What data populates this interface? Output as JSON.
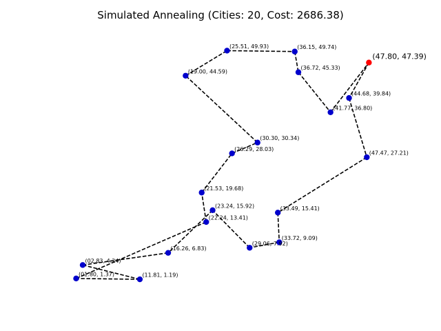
{
  "chart_data": {
    "type": "scatter",
    "title": "Simulated Annealing (Cities: 20, Cost: 2686.38)",
    "xlabel": "",
    "ylabel": "",
    "xlim": [
      -1.5,
      52.2
    ],
    "ylim": [
      -1.3,
      52.2
    ],
    "axes_visible": false,
    "grid": false,
    "colors": {
      "city": "#0000cc",
      "start_city": "#ff0000",
      "route": "#000000"
    },
    "cities": [
      {
        "x": 47.8,
        "y": 47.39,
        "label": "(47.80, 47.39)",
        "start": true
      },
      {
        "x": 44.68,
        "y": 39.84,
        "label": "(44.68, 39.84)"
      },
      {
        "x": 47.47,
        "y": 27.21,
        "label": "(47.47, 27.21)"
      },
      {
        "x": 33.49,
        "y": 15.41,
        "label": "(33.49, 15.41)"
      },
      {
        "x": 33.72,
        "y": 9.09,
        "label": "(33.72,  9.09)"
      },
      {
        "x": 29.06,
        "y": 7.92,
        "label": "(29.06,  7.92)"
      },
      {
        "x": 23.24,
        "y": 15.92,
        "label": "(23.24, 15.92)"
      },
      {
        "x": 16.26,
        "y": 6.83,
        "label": "(16.26,  6.83)"
      },
      {
        "x": 2.83,
        "y": 4.24,
        "label": "(02.83,  4.24)"
      },
      {
        "x": 11.81,
        "y": 1.19,
        "label": "(11.81,  1.19)"
      },
      {
        "x": 1.8,
        "y": 1.37,
        "label": "(01.80,  1.37)"
      },
      {
        "x": 22.24,
        "y": 13.41,
        "label": "(22.24, 13.41)"
      },
      {
        "x": 21.53,
        "y": 19.68,
        "label": "(21.53, 19.68)"
      },
      {
        "x": 26.29,
        "y": 28.03,
        "label": "(26.29, 28.03)"
      },
      {
        "x": 30.3,
        "y": 30.34,
        "label": "(30.30, 30.34)"
      },
      {
        "x": 19.0,
        "y": 44.59,
        "label": "(19.00, 44.59)"
      },
      {
        "x": 25.51,
        "y": 49.93,
        "label": "(25.51, 49.93)"
      },
      {
        "x": 36.15,
        "y": 49.74,
        "label": "(36.15, 49.74)"
      },
      {
        "x": 36.72,
        "y": 45.33,
        "label": "(36.72, 45.33)"
      },
      {
        "x": 41.77,
        "y": 36.8,
        "label": "(41.77, 36.80)"
      }
    ],
    "route_closed": true
  }
}
